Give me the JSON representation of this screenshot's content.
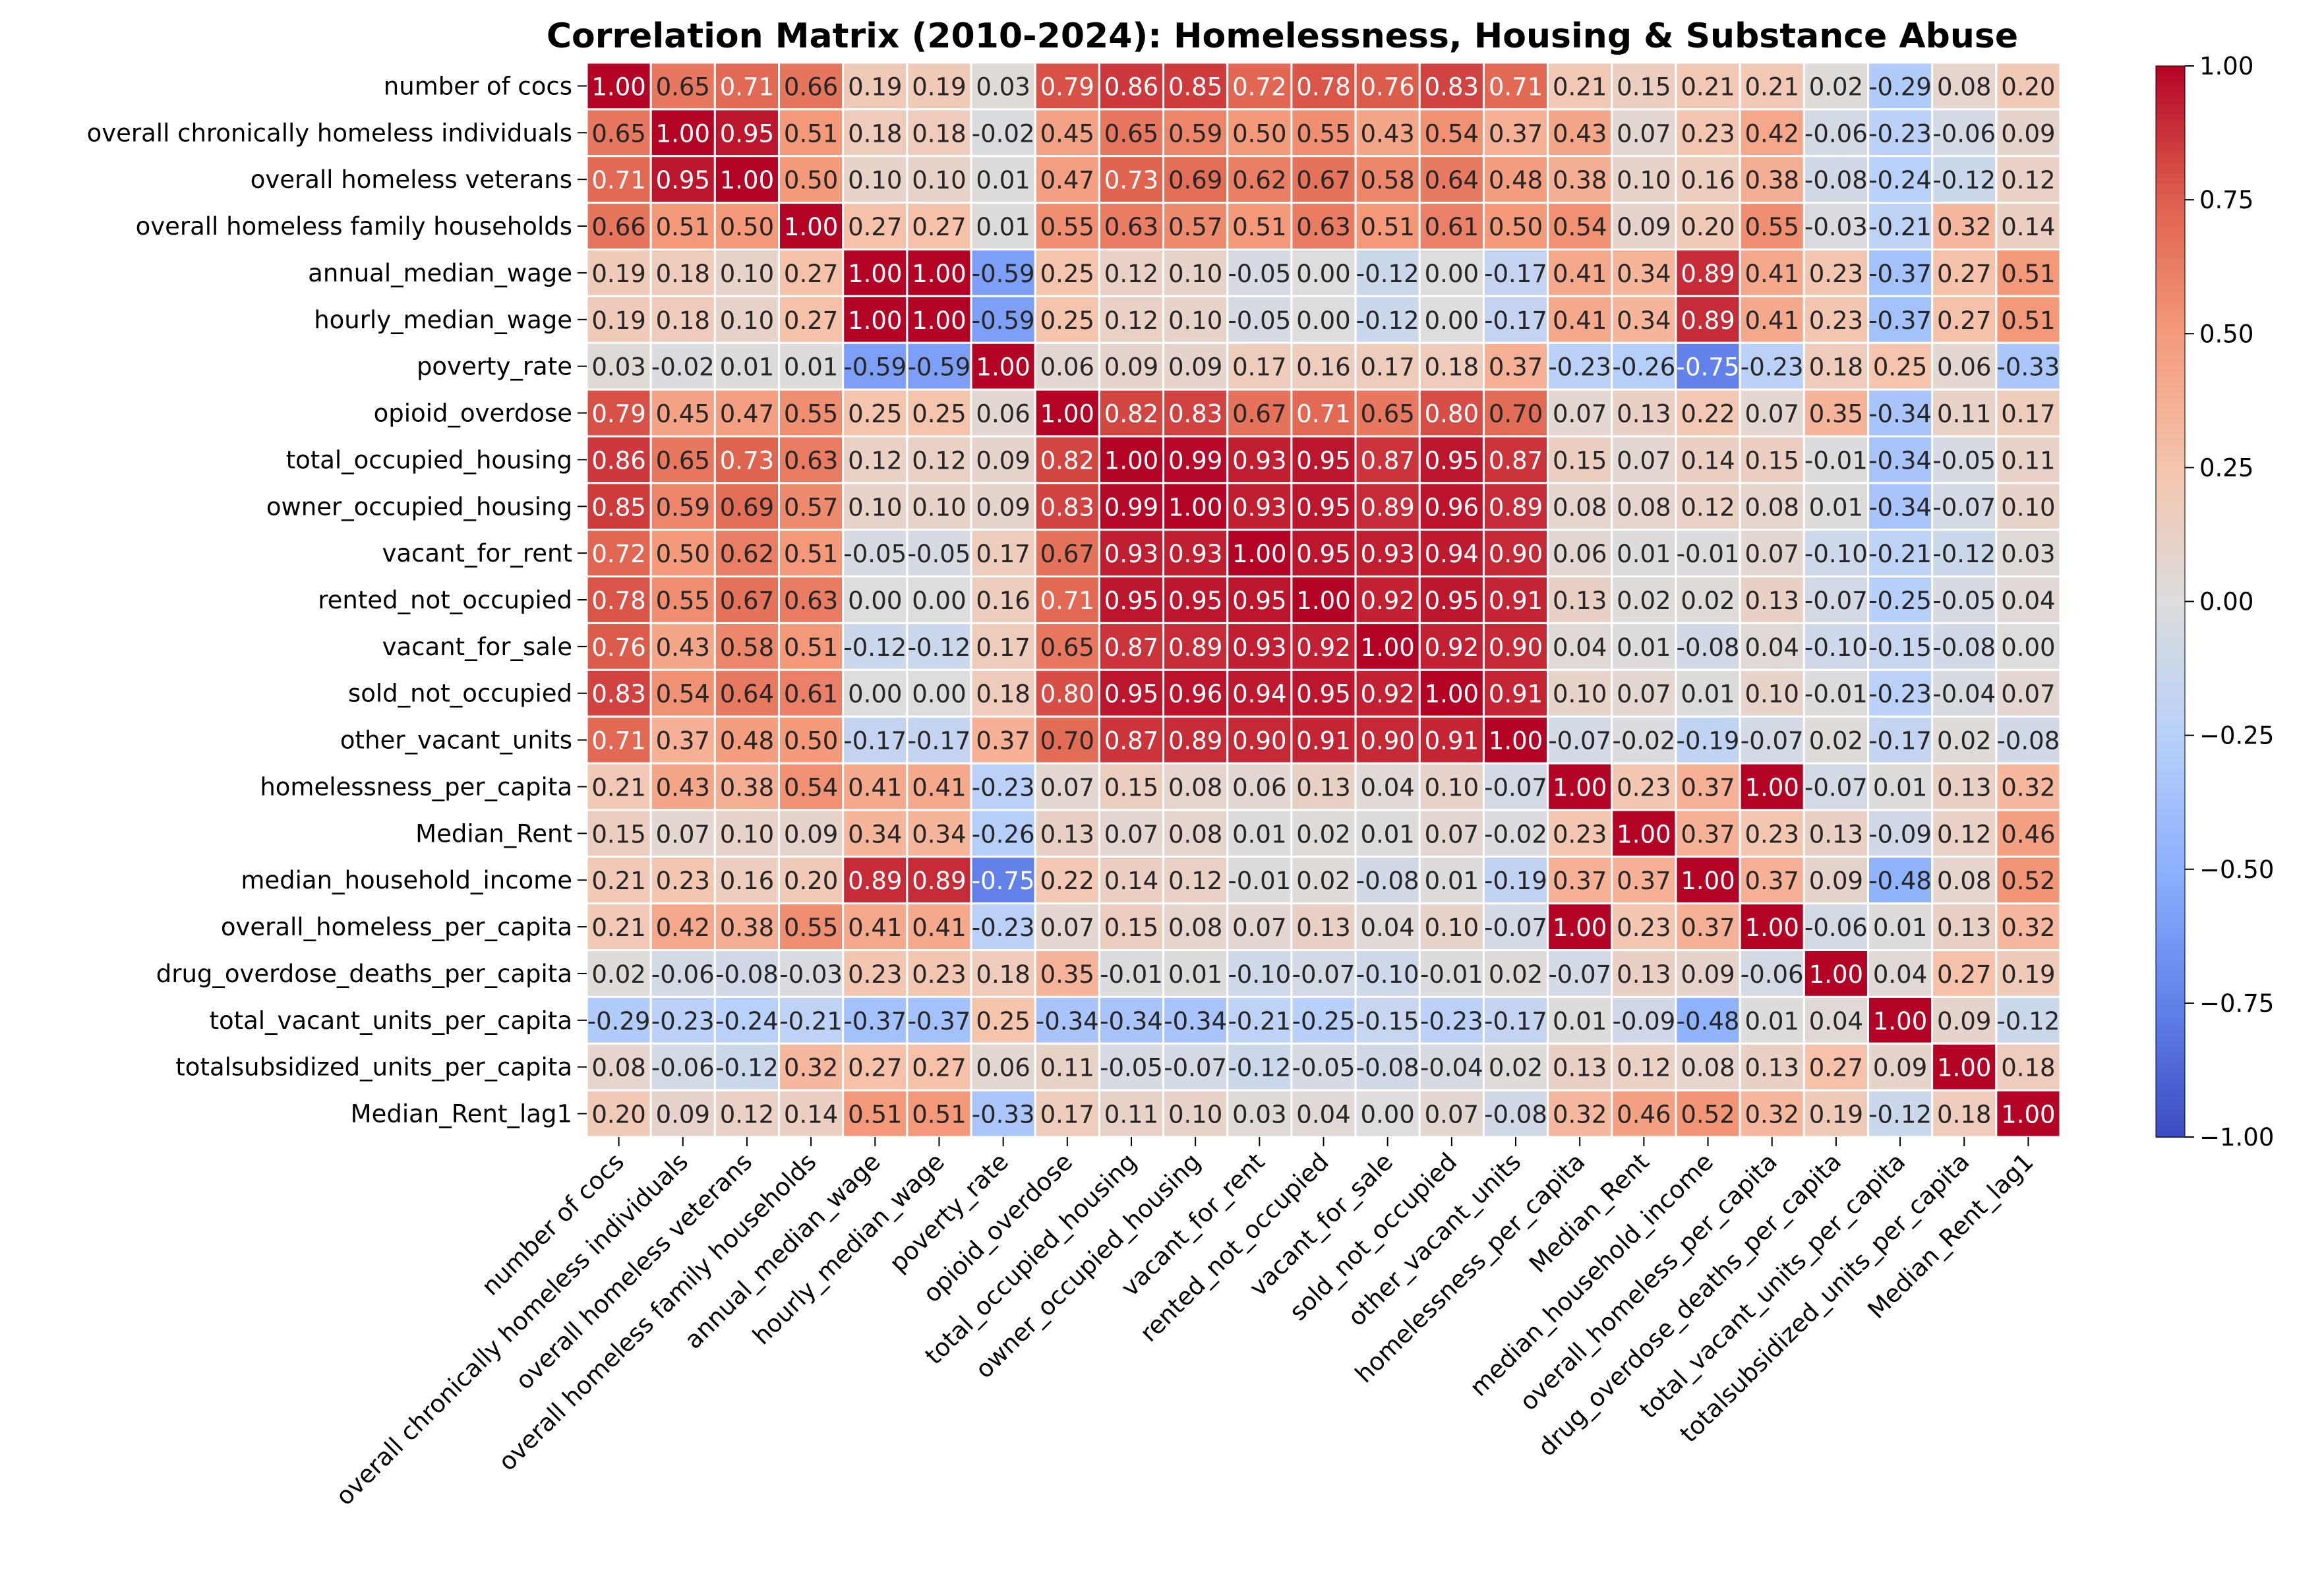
{
  "chart_data": {
    "type": "heatmap",
    "title": "Correlation Matrix (2010-2024): Homelessness, Housing & Substance Abuse",
    "xlabel": "",
    "ylabel": "",
    "labels": [
      "number of cocs",
      "overall chronically homeless individuals",
      "overall homeless veterans",
      "overall homeless family households",
      "annual_median_wage",
      "hourly_median_wage",
      "poverty_rate",
      "opioid_overdose",
      "total_occupied_housing",
      "owner_occupied_housing",
      "vacant_for_rent",
      "rented_not_occupied",
      "vacant_for_sale",
      "sold_not_occupied",
      "other_vacant_units",
      "homelessness_per_capita",
      "Median_Rent",
      "median_household_income",
      "overall_homeless_per_capita",
      "drug_overdose_deaths_per_capita",
      "total_vacant_units_per_capita",
      "totalsubsidized_units_per_capita",
      "Median_Rent_lag1"
    ],
    "matrix": [
      [
        1.0,
        0.65,
        0.71,
        0.66,
        0.19,
        0.19,
        0.03,
        0.79,
        0.86,
        0.85,
        0.72,
        0.78,
        0.76,
        0.83,
        0.71,
        0.21,
        0.15,
        0.21,
        0.21,
        0.02,
        -0.29,
        0.08,
        0.2
      ],
      [
        0.65,
        1.0,
        0.95,
        0.51,
        0.18,
        0.18,
        -0.02,
        0.45,
        0.65,
        0.59,
        0.5,
        0.55,
        0.43,
        0.54,
        0.37,
        0.43,
        0.07,
        0.23,
        0.42,
        -0.06,
        -0.23,
        -0.06,
        0.09
      ],
      [
        0.71,
        0.95,
        1.0,
        0.5,
        0.1,
        0.1,
        0.01,
        0.47,
        0.73,
        0.69,
        0.62,
        0.67,
        0.58,
        0.64,
        0.48,
        0.38,
        0.1,
        0.16,
        0.38,
        -0.08,
        -0.24,
        -0.12,
        0.12
      ],
      [
        0.66,
        0.51,
        0.5,
        1.0,
        0.27,
        0.27,
        0.01,
        0.55,
        0.63,
        0.57,
        0.51,
        0.63,
        0.51,
        0.61,
        0.5,
        0.54,
        0.09,
        0.2,
        0.55,
        -0.03,
        -0.21,
        0.32,
        0.14
      ],
      [
        0.19,
        0.18,
        0.1,
        0.27,
        1.0,
        1.0,
        -0.59,
        0.25,
        0.12,
        0.1,
        -0.05,
        0.0,
        -0.12,
        -0.0,
        -0.17,
        0.41,
        0.34,
        0.89,
        0.41,
        0.23,
        -0.37,
        0.27,
        0.51
      ],
      [
        0.19,
        0.18,
        0.1,
        0.27,
        1.0,
        1.0,
        -0.59,
        0.25,
        0.12,
        0.1,
        -0.05,
        0.0,
        -0.12,
        -0.0,
        -0.17,
        0.41,
        0.34,
        0.89,
        0.41,
        0.23,
        -0.37,
        0.27,
        0.51
      ],
      [
        0.03,
        -0.02,
        0.01,
        0.01,
        -0.59,
        -0.59,
        1.0,
        0.06,
        0.09,
        0.09,
        0.17,
        0.16,
        0.17,
        0.18,
        0.37,
        -0.23,
        -0.26,
        -0.75,
        -0.23,
        0.18,
        0.25,
        0.06,
        -0.33
      ],
      [
        0.79,
        0.45,
        0.47,
        0.55,
        0.25,
        0.25,
        0.06,
        1.0,
        0.82,
        0.83,
        0.67,
        0.71,
        0.65,
        0.8,
        0.7,
        0.07,
        0.13,
        0.22,
        0.07,
        0.35,
        -0.34,
        0.11,
        0.17
      ],
      [
        0.86,
        0.65,
        0.73,
        0.63,
        0.12,
        0.12,
        0.09,
        0.82,
        1.0,
        0.99,
        0.93,
        0.95,
        0.87,
        0.95,
        0.87,
        0.15,
        0.07,
        0.14,
        0.15,
        -0.01,
        -0.34,
        -0.05,
        0.11
      ],
      [
        0.85,
        0.59,
        0.69,
        0.57,
        0.1,
        0.1,
        0.09,
        0.83,
        0.99,
        1.0,
        0.93,
        0.95,
        0.89,
        0.96,
        0.89,
        0.08,
        0.08,
        0.12,
        0.08,
        0.01,
        -0.34,
        -0.07,
        0.1
      ],
      [
        0.72,
        0.5,
        0.62,
        0.51,
        -0.05,
        -0.05,
        0.17,
        0.67,
        0.93,
        0.93,
        1.0,
        0.95,
        0.93,
        0.94,
        0.9,
        0.06,
        0.01,
        -0.01,
        0.07,
        -0.1,
        -0.21,
        -0.12,
        0.03
      ],
      [
        0.78,
        0.55,
        0.67,
        0.63,
        0.0,
        0.0,
        0.16,
        0.71,
        0.95,
        0.95,
        0.95,
        1.0,
        0.92,
        0.95,
        0.91,
        0.13,
        0.02,
        0.02,
        0.13,
        -0.07,
        -0.25,
        -0.05,
        0.04
      ],
      [
        0.76,
        0.43,
        0.58,
        0.51,
        -0.12,
        -0.12,
        0.17,
        0.65,
        0.87,
        0.89,
        0.93,
        0.92,
        1.0,
        0.92,
        0.9,
        0.04,
        0.01,
        -0.08,
        0.04,
        -0.1,
        -0.15,
        -0.08,
        -0.0
      ],
      [
        0.83,
        0.54,
        0.64,
        0.61,
        -0.0,
        -0.0,
        0.18,
        0.8,
        0.95,
        0.96,
        0.94,
        0.95,
        0.92,
        1.0,
        0.91,
        0.1,
        0.07,
        0.01,
        0.1,
        -0.01,
        -0.23,
        -0.04,
        0.07
      ],
      [
        0.71,
        0.37,
        0.48,
        0.5,
        -0.17,
        -0.17,
        0.37,
        0.7,
        0.87,
        0.89,
        0.9,
        0.91,
        0.9,
        0.91,
        1.0,
        -0.07,
        -0.02,
        -0.19,
        -0.07,
        0.02,
        -0.17,
        0.02,
        -0.08
      ],
      [
        0.21,
        0.43,
        0.38,
        0.54,
        0.41,
        0.41,
        -0.23,
        0.07,
        0.15,
        0.08,
        0.06,
        0.13,
        0.04,
        0.1,
        -0.07,
        1.0,
        0.23,
        0.37,
        1.0,
        -0.07,
        0.01,
        0.13,
        0.32
      ],
      [
        0.15,
        0.07,
        0.1,
        0.09,
        0.34,
        0.34,
        -0.26,
        0.13,
        0.07,
        0.08,
        0.01,
        0.02,
        0.01,
        0.07,
        -0.02,
        0.23,
        1.0,
        0.37,
        0.23,
        0.13,
        -0.09,
        0.12,
        0.46
      ],
      [
        0.21,
        0.23,
        0.16,
        0.2,
        0.89,
        0.89,
        -0.75,
        0.22,
        0.14,
        0.12,
        -0.01,
        0.02,
        -0.08,
        0.01,
        -0.19,
        0.37,
        0.37,
        1.0,
        0.37,
        0.09,
        -0.48,
        0.08,
        0.52
      ],
      [
        0.21,
        0.42,
        0.38,
        0.55,
        0.41,
        0.41,
        -0.23,
        0.07,
        0.15,
        0.08,
        0.07,
        0.13,
        0.04,
        0.1,
        -0.07,
        1.0,
        0.23,
        0.37,
        1.0,
        -0.06,
        0.01,
        0.13,
        0.32
      ],
      [
        0.02,
        -0.06,
        -0.08,
        -0.03,
        0.23,
        0.23,
        0.18,
        0.35,
        -0.01,
        0.01,
        -0.1,
        -0.07,
        -0.1,
        -0.01,
        0.02,
        -0.07,
        0.13,
        0.09,
        -0.06,
        1.0,
        0.04,
        0.27,
        0.19
      ],
      [
        -0.29,
        -0.23,
        -0.24,
        -0.21,
        -0.37,
        -0.37,
        0.25,
        -0.34,
        -0.34,
        -0.34,
        -0.21,
        -0.25,
        -0.15,
        -0.23,
        -0.17,
        0.01,
        -0.09,
        -0.48,
        0.01,
        0.04,
        1.0,
        0.09,
        -0.12
      ],
      [
        0.08,
        -0.06,
        -0.12,
        0.32,
        0.27,
        0.27,
        0.06,
        0.11,
        -0.05,
        -0.07,
        -0.12,
        -0.05,
        -0.08,
        -0.04,
        0.02,
        0.13,
        0.12,
        0.08,
        0.13,
        0.27,
        0.09,
        1.0,
        0.18
      ],
      [
        0.2,
        0.09,
        0.12,
        0.14,
        0.51,
        0.51,
        -0.33,
        0.17,
        0.11,
        0.1,
        0.03,
        0.04,
        -0.0,
        0.07,
        -0.08,
        0.32,
        0.46,
        0.52,
        0.32,
        0.19,
        -0.12,
        0.18,
        1.0
      ]
    ],
    "value_range": [
      -1.0,
      1.0
    ],
    "colormap": "coolwarm",
    "colorbar_ticks": [
      "1.00",
      "0.75",
      "0.50",
      "0.25",
      "0.00",
      "−0.25",
      "−0.50",
      "−0.75",
      "−1.00"
    ],
    "colorbar_tick_values": [
      1.0,
      0.75,
      0.5,
      0.25,
      0.0,
      -0.25,
      -0.5,
      -0.75,
      -1.0
    ],
    "grid": false,
    "legend": "colorbar-right"
  }
}
